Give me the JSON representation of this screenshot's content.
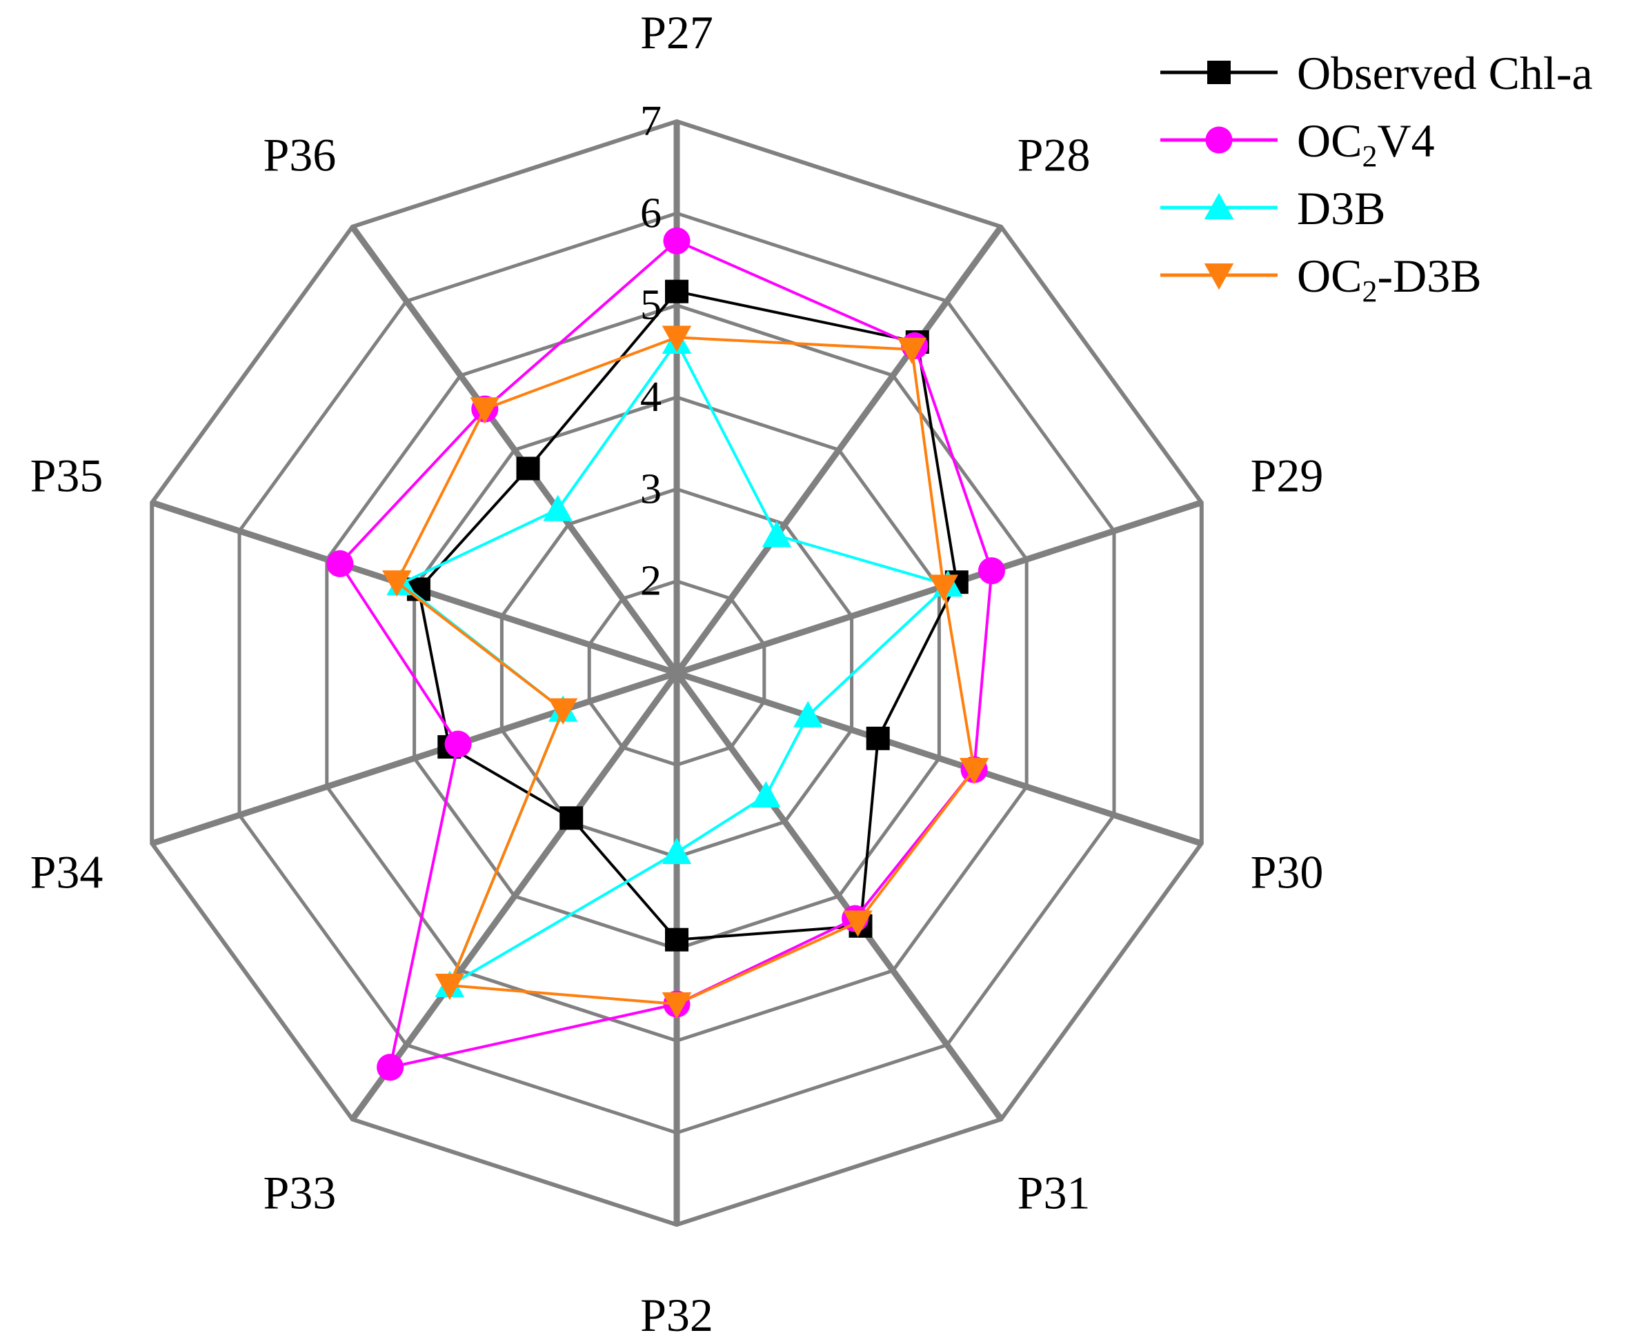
{
  "chart_data": {
    "type": "radar",
    "title": "",
    "categories": [
      "P27",
      "P28",
      "P29",
      "P30",
      "P31",
      "P32",
      "P33",
      "P34",
      "P35",
      "P36"
    ],
    "rlim": [
      1,
      7
    ],
    "ticks": [
      2,
      3,
      4,
      5,
      6,
      7
    ],
    "tick_labels": [
      "2",
      "3",
      "4",
      "5",
      "6",
      "7"
    ],
    "grid": true,
    "legend_position": "top-right",
    "series": [
      {
        "name": "Observed Chl-a",
        "legend_parts": [
          {
            "text": "Observed Chl-a",
            "sub": false
          }
        ],
        "color": "#000000",
        "marker": "square",
        "values": [
          5.15,
          5.45,
          4.2,
          3.3,
          4.4,
          3.9,
          2.95,
          3.6,
          3.95,
          3.75
        ]
      },
      {
        "name": "OC2V4",
        "legend_parts": [
          {
            "text": "OC",
            "sub": false
          },
          {
            "text": "2",
            "sub": true
          },
          {
            "text": "V4",
            "sub": false
          }
        ],
        "color": "#ff00ff",
        "marker": "circle",
        "values": [
          5.7,
          5.4,
          4.6,
          4.4,
          4.3,
          4.6,
          6.3,
          3.5,
          4.85,
          4.55
        ]
      },
      {
        "name": "D3B",
        "legend_parts": [
          {
            "text": "D3B",
            "sub": false
          }
        ],
        "color": "#00ffff",
        "marker": "triangle-up",
        "values": [
          4.6,
          2.85,
          4.1,
          2.5,
          2.65,
          2.95,
          5.2,
          2.3,
          4.15,
          3.2
        ]
      },
      {
        "name": "OC2-D3B",
        "legend_parts": [
          {
            "text": "OC",
            "sub": false
          },
          {
            "text": "2",
            "sub": true
          },
          {
            "text": "-D3B",
            "sub": false
          }
        ],
        "color": "#ff7f0e",
        "marker": "triangle-down",
        "values": [
          4.65,
          5.35,
          4.05,
          4.4,
          4.35,
          4.6,
          5.2,
          2.3,
          4.2,
          4.55
        ]
      }
    ]
  }
}
